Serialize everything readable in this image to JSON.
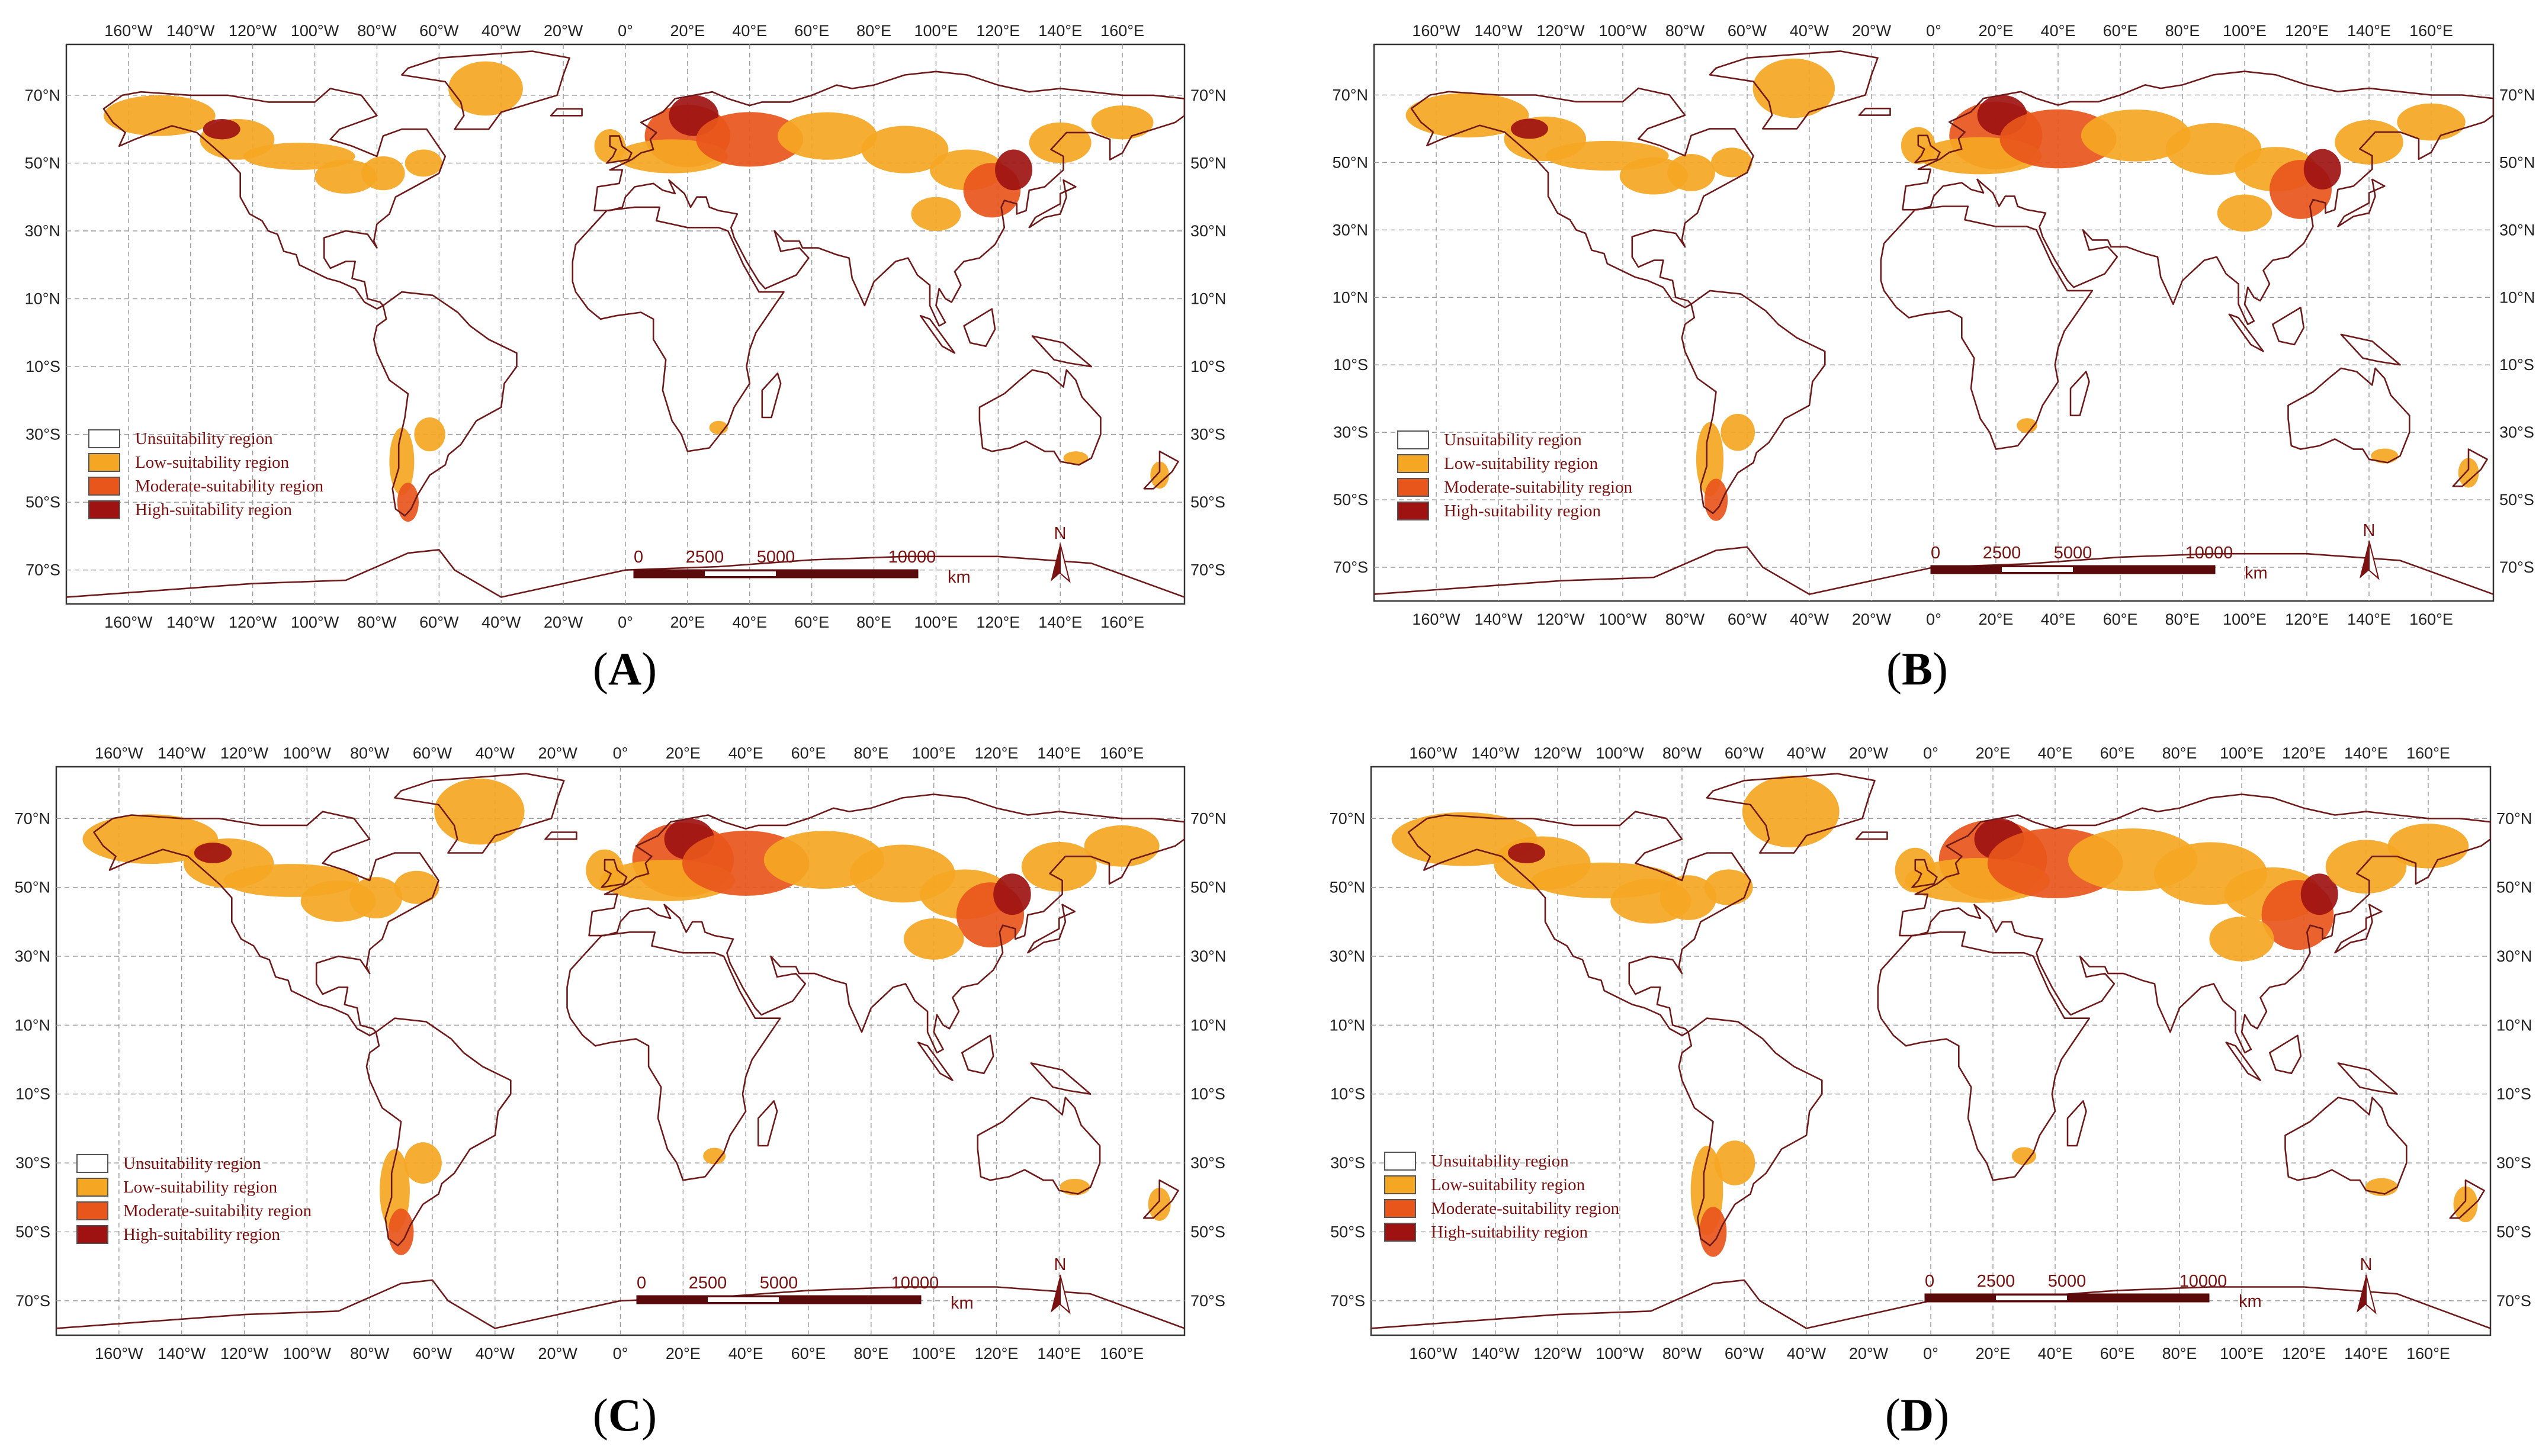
{
  "panels": [
    {
      "id": "A",
      "caption": "A"
    },
    {
      "id": "B",
      "caption": "B"
    },
    {
      "id": "C",
      "caption": "C"
    },
    {
      "id": "D",
      "caption": "D"
    }
  ],
  "longitude_ticks": [
    "160°W",
    "140°W",
    "120°W",
    "100°W",
    "80°W",
    "60°W",
    "40°W",
    "20°W",
    "0°",
    "20°E",
    "40°E",
    "60°E",
    "80°E",
    "100°E",
    "120°E",
    "140°E",
    "160°E"
  ],
  "latitude_ticks": [
    "70°N",
    "50°N",
    "30°N",
    "10°N",
    "10°S",
    "30°S",
    "50°S",
    "70°S"
  ],
  "legend": [
    {
      "label": "Unsuitability region",
      "color": "#ffffff"
    },
    {
      "label": "Low-suitability region",
      "color": "#f5a623"
    },
    {
      "label": "Moderate-suitability region",
      "color": "#e8561c"
    },
    {
      "label": "High-suitability region",
      "color": "#9e1212"
    }
  ],
  "scale_bar": {
    "labels": [
      "0",
      "2500",
      "5000",
      "10000"
    ],
    "unit": "km"
  },
  "north_arrow": {
    "label": "N"
  },
  "colors": {
    "border": "#6e1a1a",
    "low": "#f5a623",
    "moderate": "#e8561c",
    "high": "#9e1212",
    "grid": "#9a9a9a"
  },
  "panel_suitability": {
    "A": {
      "low_extent": 1.0,
      "moderate_extent": 0.35
    },
    "B": {
      "low_extent": 1.1,
      "moderate_extent": 0.45
    },
    "C": {
      "low_extent": 1.2,
      "moderate_extent": 0.55
    },
    "D": {
      "low_extent": 1.3,
      "moderate_extent": 0.65
    }
  }
}
